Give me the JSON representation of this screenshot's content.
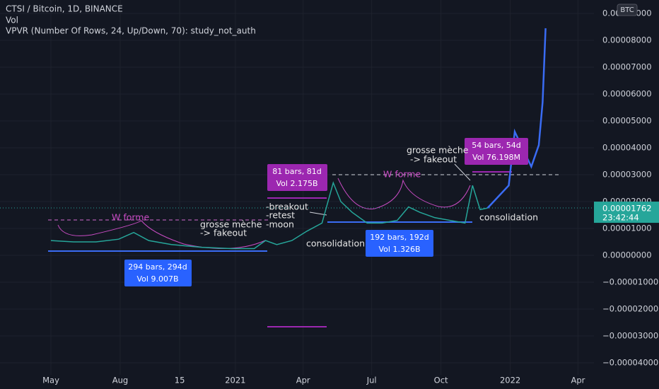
{
  "chart_data": {
    "type": "line",
    "title": "CTSI / Bitcoin, 1D, BINANCE",
    "indicators": [
      "Vol",
      "VPVR (Number Of Rows, 24, Up/Down, 70): study_not_auth"
    ],
    "scale_label": "BTC",
    "x": [
      0,
      30,
      60,
      90,
      110,
      130,
      160,
      200,
      240,
      270,
      285,
      300,
      320,
      340,
      360,
      375,
      385,
      400,
      420,
      440,
      460,
      475,
      490,
      510,
      530,
      550,
      560,
      570,
      580,
      608,
      616,
      638,
      648,
      653,
      657
    ],
    "series": [
      {
        "color": "#26a69a",
        "values": [
          5.5e-06,
          5e-06,
          5e-06,
          6e-06,
          8.5e-06,
          5.5e-06,
          4e-06,
          3e-06,
          2.5e-06,
          2.5e-06,
          5.5e-06,
          4e-06,
          5.5e-06,
          9e-06,
          1.2e-05,
          2.7e-05,
          2e-05,
          1.6e-05,
          1.2e-05,
          1.2e-05,
          1.3e-05,
          1.8e-05,
          1.6e-05,
          1.4e-05,
          1.3e-05,
          1.2e-05,
          2.6e-05,
          1.7e-05,
          1.76e-05,
          null,
          null,
          null,
          null,
          null,
          null
        ]
      },
      {
        "color": "#3a6cf4",
        "values": [
          null,
          null,
          null,
          null,
          null,
          null,
          null,
          null,
          null,
          null,
          null,
          null,
          null,
          null,
          null,
          null,
          null,
          null,
          null,
          null,
          null,
          null,
          null,
          null,
          null,
          null,
          null,
          null,
          1.76e-05,
          2.6e-05,
          4.6e-05,
          3.3e-05,
          4.1e-05,
          5.7e-05,
          8.45e-05
        ]
      }
    ],
    "xlim": [
      -67.6,
      721.2
    ],
    "xticks": [
      {
        "value": 0,
        "label": "May"
      },
      {
        "value": 92,
        "label": "Aug"
      },
      {
        "value": 171,
        "label": "15"
      },
      {
        "value": 245,
        "label": "2021"
      },
      {
        "value": 335,
        "label": "Apr"
      },
      {
        "value": 426,
        "label": "Jul"
      },
      {
        "value": 518,
        "label": "Oct"
      },
      {
        "value": 610,
        "label": "2022"
      },
      {
        "value": 700,
        "label": "Apr"
      }
    ],
    "ylim": [
      -4.447e-05,
      9.5e-05
    ],
    "yticks": [
      {
        "value": 9e-05,
        "label": "0.00009000"
      },
      {
        "value": 8e-05,
        "label": "0.00008000"
      },
      {
        "value": 7e-05,
        "label": "0.00007000"
      },
      {
        "value": 6e-05,
        "label": "0.00006000"
      },
      {
        "value": 5e-05,
        "label": "0.00005000"
      },
      {
        "value": 4e-05,
        "label": "0.00004000"
      },
      {
        "value": 3e-05,
        "label": "0.00003000"
      },
      {
        "value": 2e-05,
        "label": "0.00002000"
      },
      {
        "value": 1e-05,
        "label": "0.00001000"
      },
      {
        "value": 0,
        "label": "0.00000000"
      },
      {
        "value": -1e-05,
        "label": "−0.00001000"
      },
      {
        "value": -2e-05,
        "label": "−0.00002000"
      },
      {
        "value": -3e-05,
        "label": "−0.00003000"
      },
      {
        "value": -4e-05,
        "label": "−0.00004000"
      }
    ],
    "grid": true,
    "last_price": 1.762e-05,
    "bar_countdown": "23:42:44",
    "annotations": [
      "W forme",
      "W forme",
      "grosse mèche",
      "-> fakeout",
      "-breakout",
      "-retest",
      "-moon",
      "consolidation",
      "grosse mèche",
      "-> fakeout",
      "consolidation"
    ],
    "range_boxes": [
      [
        "294 bars, 294d",
        "Vol 9.007B"
      ],
      [
        "81 bars, 81d",
        "Vol 2.175B"
      ],
      [
        "192 bars, 192d",
        "Vol 1.326B"
      ],
      [
        "54 bars, 54d",
        "Vol 76.198M"
      ]
    ]
  }
}
